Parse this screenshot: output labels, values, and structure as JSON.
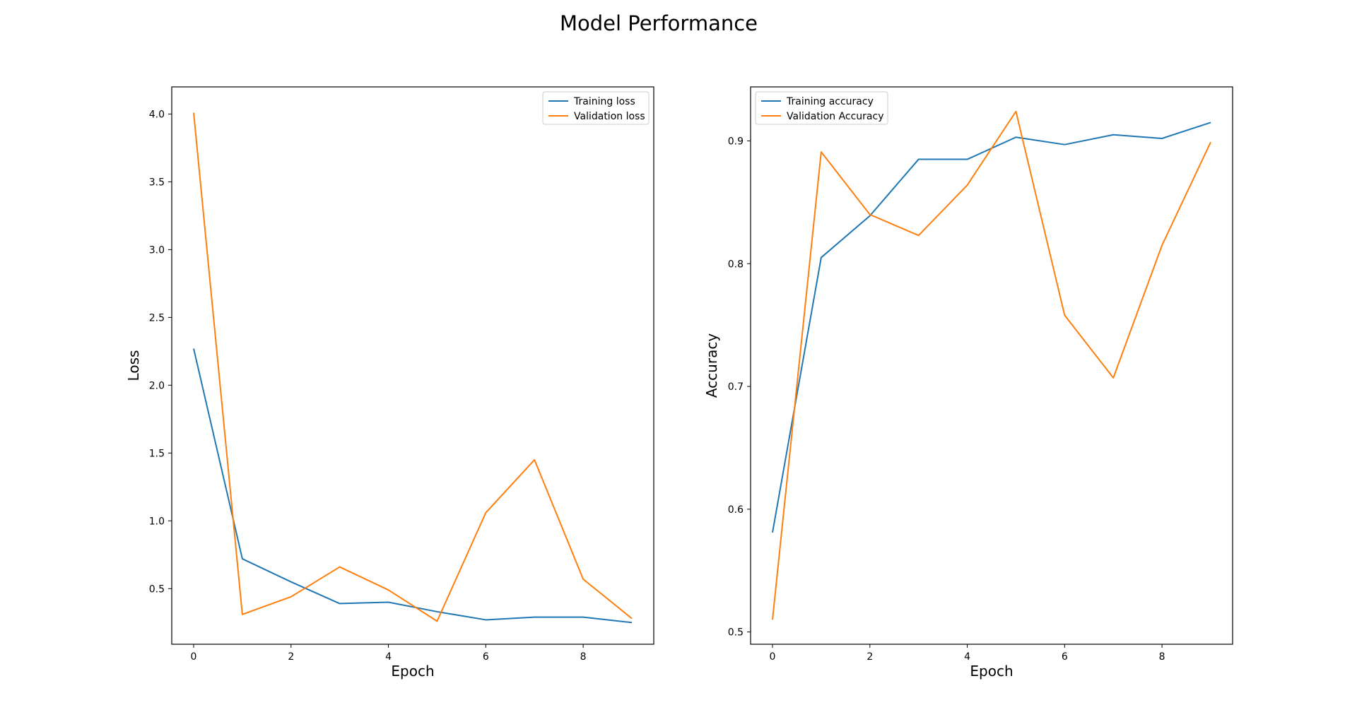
{
  "figure": {
    "title": "Model Performance"
  },
  "colors": {
    "training": "#1f77b4",
    "validation": "#ff7f0e",
    "axes": "#000000",
    "legend_border": "#cccccc"
  },
  "chart_data": [
    {
      "type": "line",
      "title": "",
      "xlabel": "Epoch",
      "ylabel": "Loss",
      "x": [
        0,
        1,
        2,
        3,
        4,
        5,
        6,
        7,
        8,
        9
      ],
      "xlim": [
        -0.45,
        9.45
      ],
      "ylim": [
        0.09,
        4.2
      ],
      "xticks": [
        0,
        2,
        4,
        6,
        8
      ],
      "yticks": [
        0.5,
        1.0,
        1.5,
        2.0,
        2.5,
        3.0,
        3.5,
        4.0
      ],
      "ytick_labels": [
        "0.5",
        "1.0",
        "1.5",
        "2.0",
        "2.5",
        "3.0",
        "3.5",
        "4.0"
      ],
      "grid": false,
      "legend_position": "top-right",
      "series": [
        {
          "name": "Training loss",
          "color_key": "training",
          "values": [
            2.27,
            0.72,
            0.55,
            0.39,
            0.4,
            0.33,
            0.27,
            0.29,
            0.29,
            0.25
          ]
        },
        {
          "name": "Validation loss",
          "color_key": "validation",
          "values": [
            4.01,
            0.31,
            0.44,
            0.66,
            0.49,
            0.26,
            1.06,
            1.45,
            0.57,
            0.28
          ]
        }
      ]
    },
    {
      "type": "line",
      "title": "",
      "xlabel": "Epoch",
      "ylabel": "Accuracy",
      "x": [
        0,
        1,
        2,
        3,
        4,
        5,
        6,
        7,
        8,
        9
      ],
      "xlim": [
        -0.45,
        9.45
      ],
      "ylim": [
        0.49,
        0.944
      ],
      "xticks": [
        0,
        2,
        4,
        6,
        8
      ],
      "yticks": [
        0.5,
        0.6,
        0.7,
        0.8,
        0.9
      ],
      "ytick_labels": [
        "0.5",
        "0.6",
        "0.7",
        "0.8",
        "0.9"
      ],
      "grid": false,
      "legend_position": "top-left",
      "series": [
        {
          "name": "Training accuracy",
          "color_key": "training",
          "values": [
            0.581,
            0.805,
            0.839,
            0.885,
            0.885,
            0.903,
            0.897,
            0.905,
            0.902,
            0.915
          ]
        },
        {
          "name": "Validation Accuracy",
          "color_key": "validation",
          "values": [
            0.51,
            0.891,
            0.84,
            0.823,
            0.864,
            0.924,
            0.758,
            0.707,
            0.815,
            0.899
          ]
        }
      ]
    }
  ]
}
